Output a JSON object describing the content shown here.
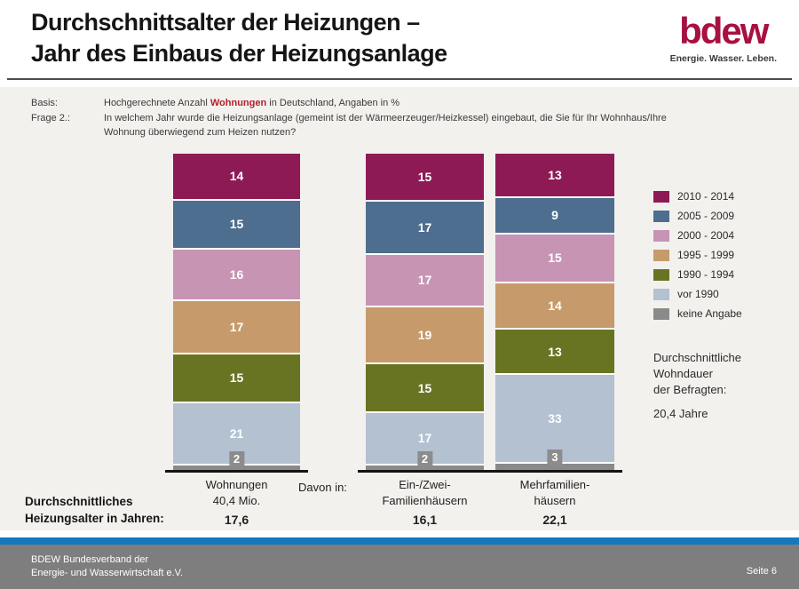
{
  "header": {
    "title_line1": "Durchschnittsalter der Heizungen –",
    "title_line2": "Jahr des Einbaus der Heizungsanlage",
    "logo_text": "bdew",
    "logo_tagline": "Energie. Wasser. Leben."
  },
  "meta": {
    "basis_label": "Basis:",
    "basis_text_prefix": "Hochgerechnete Anzahl ",
    "basis_text_highlight": "Wohnungen",
    "basis_text_suffix": " in Deutschland, Angaben in %",
    "frage_label": "Frage 2.:",
    "frage_line1": "In welchem Jahr wurde die Heizungsanlage (gemeint ist der Wärmeerzeuger/Heizkessel) eingebaut, die Sie für Ihr Wohnhaus/Ihre",
    "frage_line2": "Wohnung überwiegend zum Heizen nutzen?"
  },
  "chart_data": {
    "type": "bar",
    "stacked": true,
    "unit": "%",
    "legend_position": "right",
    "categories": [
      {
        "lines": [
          "Wohnungen",
          "40,4 Mio."
        ],
        "average": "17,6"
      },
      {
        "lines": [
          "Ein-/Zwei-",
          "Familienhäusern"
        ],
        "average": "16,1"
      },
      {
        "lines": [
          "Mehrfamilien-",
          "häusern"
        ],
        "average": "22,1"
      }
    ],
    "davon_label": "Davon in:",
    "averages_caption_line1": "Durchschnittliches",
    "averages_caption_line2": "Heizungsalter in Jahren:",
    "series": [
      {
        "name": "2010 - 2014",
        "color": "#8E1A55",
        "values": [
          14,
          15,
          13
        ]
      },
      {
        "name": "2005 - 2009",
        "color": "#4D6E8E",
        "values": [
          15,
          17,
          9
        ]
      },
      {
        "name": "2000 - 2004",
        "color": "#C794B3",
        "values": [
          16,
          17,
          15
        ]
      },
      {
        "name": "1995 - 1999",
        "color": "#C69A6A",
        "values": [
          17,
          19,
          14
        ]
      },
      {
        "name": "1990 - 1994",
        "color": "#697423",
        "values": [
          15,
          15,
          13
        ]
      },
      {
        "name": "vor 1990",
        "color": "#B3C1D1",
        "values": [
          21,
          17,
          33
        ]
      },
      {
        "name": "keine Angabe",
        "color": "#8A8A8A",
        "values": [
          2,
          2,
          3
        ],
        "label_badge": true
      }
    ]
  },
  "side_note": {
    "line1": "Durchschnittliche",
    "line2": "Wohndauer",
    "line3": "der Befragten:",
    "value": "20,4 Jahre"
  },
  "footer": {
    "org_line1": "BDEW Bundesverband der",
    "org_line2": "Energie- und Wasserwirtschaft e.V.",
    "page": "Seite 6"
  },
  "colors": {
    "logo_red": "#A81040",
    "highlight_red": "#B0212C",
    "footer_blue": "#1478BE",
    "footer_gray": "#7E7E7E",
    "panel_gray": "#F2F1EE",
    "badge_gray": "#8C8C8C"
  }
}
